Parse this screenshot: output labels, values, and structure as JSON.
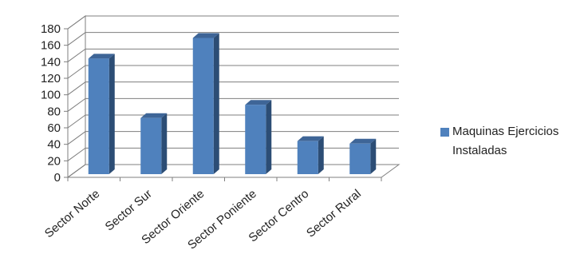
{
  "chart_data": {
    "type": "bar",
    "categories": [
      "Sector Norte",
      "Sector Sur",
      "Sector Oriente",
      "Sector Poniente",
      "Sector Centro",
      "Sector Rural"
    ],
    "series": [
      {
        "name": "Maquinas Ejercicios Instaladas",
        "values": [
          140,
          68,
          165,
          84,
          40,
          37
        ]
      }
    ],
    "ylim": [
      0,
      180
    ],
    "yticks": [
      "0",
      "20",
      "40",
      "60",
      "80",
      "100",
      "120",
      "140",
      "160",
      "180"
    ],
    "grid": true,
    "legend": "right",
    "colors": {
      "bar_front": "#4f81bd",
      "bar_side": "#2c4d75",
      "bar_top": "#3e6597",
      "grid": "#7f7f7f"
    }
  }
}
